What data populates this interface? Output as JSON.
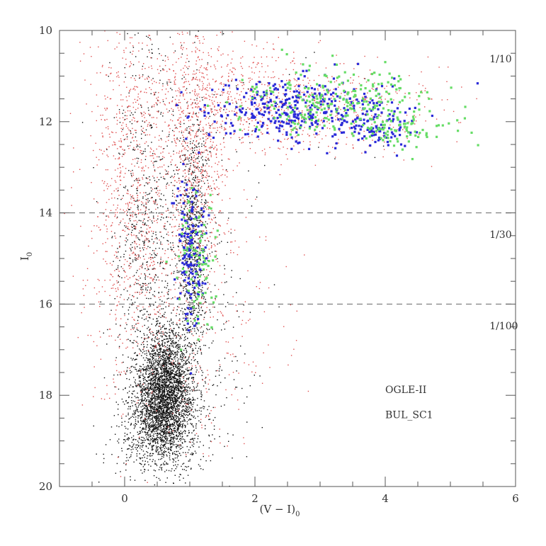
{
  "chart_data": {
    "type": "scatter",
    "title": "",
    "xlabel": "(V − I)",
    "xlabel_subscript": "0",
    "ylabel": "I",
    "ylabel_subscript": "0",
    "xlim": [
      -1,
      6
    ],
    "ylim": [
      10,
      20
    ],
    "y_inverted": true,
    "grid": false,
    "x_ticks": [
      "0",
      "2",
      "4",
      "6"
    ],
    "y_ticks": [
      "10",
      "12",
      "14",
      "16",
      "18",
      "20"
    ],
    "x_minor_step": 0.5,
    "y_minor_step": 0.5,
    "reference_lines": [
      {
        "axis": "y",
        "value": 14,
        "style": "dashed"
      },
      {
        "axis": "y",
        "value": 16,
        "style": "dashed"
      }
    ],
    "annotations": [
      {
        "text": "1/10",
        "x": 5.6,
        "y": 10.7
      },
      {
        "text": "1/30",
        "x": 5.6,
        "y": 14.55
      },
      {
        "text": "1/100",
        "x": 5.6,
        "y": 16.55
      },
      {
        "text": "OGLE-II",
        "x": 4.0,
        "y": 17.95
      },
      {
        "text": "BUL_SC1",
        "x": 4.0,
        "y": 18.5
      }
    ],
    "series": [
      {
        "color": "#111111",
        "components": [
          {
            "cx": 0.6,
            "cy": 18.1,
            "sx": 0.22,
            "sy": 0.55,
            "n": 2600
          },
          {
            "cx": 0.65,
            "cy": 17.2,
            "sx": 0.15,
            "sy": 0.45,
            "n": 500
          },
          {
            "cx": 0.55,
            "cy": 19.0,
            "sx": 0.35,
            "sy": 0.35,
            "n": 450
          },
          {
            "cx": 1.05,
            "cy": 14.7,
            "sx": 0.11,
            "sy": 1.35,
            "n": 800
          },
          {
            "cx": 0.35,
            "cy": 14.5,
            "sx": 0.25,
            "sy": 2.2,
            "n": 650
          },
          {
            "cx": 0.9,
            "cy": 16.8,
            "sx": 0.5,
            "sy": 1.8,
            "n": 450
          },
          {
            "cx": 1.4,
            "cy": 11.8,
            "sx": 1.0,
            "sy": 0.8,
            "n": 90
          }
        ]
      },
      {
        "color": "#e05050",
        "components": [
          {
            "cx": 0.1,
            "cy": 13.4,
            "sx": 0.35,
            "sy": 2.0,
            "n": 900
          },
          {
            "cx": 1.1,
            "cy": 12.8,
            "sx": 0.25,
            "sy": 1.3,
            "n": 650
          },
          {
            "cx": 2.7,
            "cy": 11.7,
            "sx": 1.0,
            "sy": 0.5,
            "n": 700
          },
          {
            "cx": 1.5,
            "cy": 11.3,
            "sx": 0.6,
            "sy": 0.6,
            "n": 250
          },
          {
            "cx": 1.0,
            "cy": 16.5,
            "sx": 0.7,
            "sy": 1.5,
            "n": 300
          }
        ]
      },
      {
        "color": "#2a2ad8",
        "components": [
          {
            "cx": 2.6,
            "cy": 11.7,
            "sx": 0.75,
            "sy": 0.35,
            "n": 330
          },
          {
            "cx": 3.8,
            "cy": 12.1,
            "sx": 0.3,
            "sy": 0.25,
            "n": 90
          },
          {
            "cx": 1.0,
            "cy": 14.8,
            "sx": 0.1,
            "sy": 0.9,
            "n": 150
          }
        ]
      },
      {
        "color": "#66dd66",
        "components": [
          {
            "cx": 3.3,
            "cy": 11.6,
            "sx": 0.8,
            "sy": 0.4,
            "n": 260
          },
          {
            "cx": 4.2,
            "cy": 12.2,
            "sx": 0.3,
            "sy": 0.2,
            "n": 60
          },
          {
            "cx": 1.1,
            "cy": 15.0,
            "sx": 0.15,
            "sy": 0.9,
            "n": 85
          }
        ]
      }
    ]
  }
}
